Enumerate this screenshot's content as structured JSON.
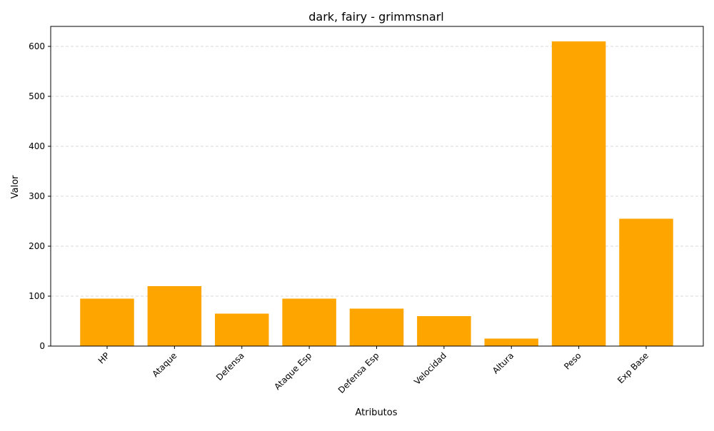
{
  "chart_data": {
    "type": "bar",
    "title": "dark, fairy - grimmsnarl",
    "xlabel": "Atributos",
    "ylabel": "Valor",
    "categories": [
      "HP",
      "Ataque",
      "Defensa",
      "Ataque Esp",
      "Defensa Esp",
      "Velocidad",
      "Altura",
      "Peso",
      "Exp Base"
    ],
    "values": [
      95,
      120,
      65,
      95,
      75,
      60,
      15,
      610,
      255
    ],
    "ylim": [
      0,
      640
    ],
    "yticks": [
      0,
      100,
      200,
      300,
      400,
      500,
      600
    ],
    "ytick_labels": [
      "0",
      "100",
      "200",
      "300",
      "400",
      "500",
      "600"
    ],
    "bar_color": "#FFA500",
    "grid": "y-dashed",
    "xtick_rotation": 45
  }
}
